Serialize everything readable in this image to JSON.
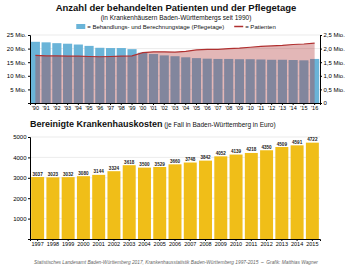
{
  "chart_data": [
    {
      "type": "bar",
      "title": "Anzahl der behandelten Patienten und der Pflegetage",
      "subtitle": "(in Krankenhäusern Baden-Württembergs seit 1990)",
      "categories": [
        "'90",
        "'91",
        "'92",
        "'93",
        "'94",
        "'95",
        "'96",
        "'97",
        "'98",
        "'99",
        "'00",
        "'01",
        "'02",
        "'03",
        "'04",
        "'05",
        "'06",
        "'07",
        "'08",
        "'09",
        "'10",
        "'11",
        "'12",
        "'13",
        "'14",
        "'15",
        "'16"
      ],
      "series": [
        {
          "name": "= Behandlungs- und Berechnungstage (Pflegetage)",
          "type": "bar",
          "color": "#6ab4d8",
          "values": [
            22.5,
            22.3,
            22.0,
            21.8,
            21.5,
            21.0,
            20.3,
            20.2,
            20.2,
            19.8,
            18.5,
            18.0,
            17.5,
            17.2,
            16.8,
            16.5,
            16.3,
            16.2,
            16.2,
            16.1,
            16.1,
            16.0,
            15.9,
            15.9,
            15.8,
            15.7,
            16.2
          ]
        },
        {
          "name": "= Patienten",
          "type": "area",
          "color": "#b03030",
          "axis": "y2",
          "values": [
            1.75,
            1.73,
            1.73,
            1.72,
            1.72,
            1.71,
            1.7,
            1.71,
            1.72,
            1.73,
            1.85,
            1.88,
            1.88,
            1.87,
            1.9,
            1.95,
            1.97,
            1.97,
            2.0,
            2.02,
            2.05,
            2.08,
            2.1,
            2.12,
            2.15,
            2.17,
            2.2
          ]
        }
      ],
      "ylim": [
        0,
        25
      ],
      "yticks": [
        {
          "value": 5,
          "label": "5 Mio."
        },
        {
          "value": 10,
          "label": "10 Mio."
        },
        {
          "value": 15,
          "label": "15 Mio."
        },
        {
          "value": 20,
          "label": "20 Mio."
        },
        {
          "value": 25,
          "label": "25 Mio."
        }
      ],
      "y2lim": [
        0,
        2.5
      ],
      "y2ticks": [
        0,
        {
          "value": 0.5,
          "label": "0,5 Mio."
        },
        {
          "value": 1.0,
          "label": "1,0 Mio."
        },
        {
          "value": 1.5,
          "label": "1,5 Mio."
        },
        {
          "value": 2.0,
          "label": "2,0 Mio."
        },
        {
          "value": 2.5,
          "label": "2,5 Mio."
        }
      ],
      "grid": true,
      "legend": "top"
    },
    {
      "type": "bar",
      "title": "Bereinigte Krankenhauskosten",
      "subtitle": " (je Fall in Baden-Württemberg in Euro)",
      "categories": [
        "1997",
        "1998",
        "1999",
        "2000",
        "2001",
        "2002",
        "2003",
        "2004",
        "2005",
        "2006",
        "2007",
        "2008",
        "2009",
        "2010",
        "2011",
        "2012",
        "2013",
        "2014",
        "2015"
      ],
      "values": [
        3037,
        3023,
        3032,
        3080,
        3144,
        3324,
        3618,
        3500,
        3529,
        3660,
        3748,
        3842,
        4052,
        4139,
        4218,
        4350,
        4509,
        4591,
        4722
      ],
      "color": "#f0be18",
      "ylim": [
        0,
        5000
      ],
      "yticks": [
        1000,
        2000,
        3000,
        4000,
        5000
      ],
      "grid": true,
      "data_labels": true,
      "annotations": [
        "Statistisches Landesamt Baden-Württemberg 2017, Krankenhausstatistik Baden-Württemberg 1997-2015  –  Grafik: Matthias Wagner"
      ]
    }
  ]
}
